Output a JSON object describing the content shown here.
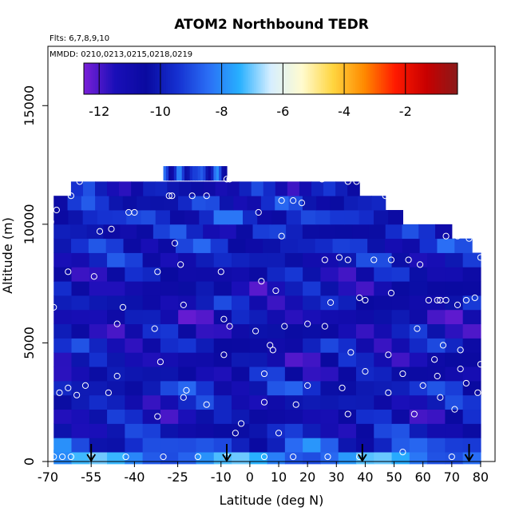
{
  "chart_data": {
    "type": "heatmap",
    "title": "ATOM2 Northbound TEDR",
    "subtitle_flights": "Flts: 6,7,8,9,10",
    "subtitle_dates": "MMDD: 0210,0213,0215,0218,0219",
    "xlabel": "Latitude (deg N)",
    "ylabel": "Altitude (m)",
    "xlim": [
      -70,
      85
    ],
    "ylim": [
      0,
      17500
    ],
    "x_ticks": [
      -70,
      -55,
      -40,
      -25,
      -10,
      0,
      10,
      20,
      30,
      40,
      50,
      60,
      70,
      80
    ],
    "y_ticks": [
      0,
      5000,
      10000,
      15000
    ],
    "colorbar": {
      "range": [
        -12.5,
        -0.3
      ],
      "ticks": [
        -12,
        -10,
        -8,
        -6,
        -4,
        -2
      ],
      "colors": [
        "#7a1fd8",
        "#1a0fb8",
        "#0a0aa0",
        "#1530d0",
        "#2a6ef5",
        "#28b0ff",
        "#d6eeff",
        "#fffbd0",
        "#ffd540",
        "#ff8a00",
        "#ff1a00",
        "#c80000",
        "#8a1a1a"
      ]
    },
    "altitude_bands": [
      {
        "alt": 200,
        "lat_min": -68,
        "lat_max": 80,
        "value": -8.6
      },
      {
        "alt": 700,
        "lat_min": -68,
        "lat_max": 80,
        "value": -9.3
      },
      {
        "alt": 1300,
        "lat_min": -68,
        "lat_max": 80,
        "value": -10.2
      },
      {
        "alt": 1900,
        "lat_min": -68,
        "lat_max": 80,
        "value": -10.6
      },
      {
        "alt": 2500,
        "lat_min": -68,
        "lat_max": 80,
        "value": -10.4
      },
      {
        "alt": 3100,
        "lat_min": -68,
        "lat_max": 80,
        "value": -9.8
      },
      {
        "alt": 3700,
        "lat_min": -68,
        "lat_max": 80,
        "value": -10.5
      },
      {
        "alt": 4300,
        "lat_min": -68,
        "lat_max": 80,
        "value": -10.8
      },
      {
        "alt": 4900,
        "lat_min": -68,
        "lat_max": 80,
        "value": -10.3
      },
      {
        "alt": 5500,
        "lat_min": -68,
        "lat_max": 80,
        "value": -10.7
      },
      {
        "alt": 6100,
        "lat_min": -68,
        "lat_max": 80,
        "value": -10.9
      },
      {
        "alt": 6700,
        "lat_min": -68,
        "lat_max": 80,
        "value": -10.4
      },
      {
        "alt": 7300,
        "lat_min": -68,
        "lat_max": 80,
        "value": -10.8
      },
      {
        "alt": 7900,
        "lat_min": -68,
        "lat_max": 80,
        "value": -10.5
      },
      {
        "alt": 8500,
        "lat_min": -68,
        "lat_max": 80,
        "value": -10.2
      },
      {
        "alt": 9100,
        "lat_min": -68,
        "lat_max": 77,
        "value": -9.9
      },
      {
        "alt": 9700,
        "lat_min": -68,
        "lat_max": 70,
        "value": -10.1
      },
      {
        "alt": 10300,
        "lat_min": -68,
        "lat_max": 53,
        "value": -9.6
      },
      {
        "alt": 10900,
        "lat_min": -68,
        "lat_max": 47,
        "value": -9.9
      },
      {
        "alt": 11500,
        "lat_min": -62,
        "lat_max": 38,
        "value": -10.4
      },
      {
        "alt": 12150,
        "lat_min": -30,
        "lat_max": -8,
        "value": -9.4
      }
    ],
    "observations": [
      [
        -68,
        200
      ],
      [
        -65,
        200
      ],
      [
        -62,
        200
      ],
      [
        -55,
        200
      ],
      [
        -43,
        200
      ],
      [
        -30,
        200
      ],
      [
        -18,
        200
      ],
      [
        -8,
        200
      ],
      [
        5,
        200
      ],
      [
        15,
        200
      ],
      [
        27,
        200
      ],
      [
        38,
        200
      ],
      [
        53,
        400
      ],
      [
        70,
        200
      ],
      [
        -57,
        3200
      ],
      [
        -49,
        2900
      ],
      [
        -46,
        3600
      ],
      [
        -31,
        4200
      ],
      [
        -22,
        3000
      ],
      [
        -15,
        2400
      ],
      [
        -9,
        4500
      ],
      [
        -5,
        1200
      ],
      [
        5,
        3700
      ],
      [
        16,
        2400
      ],
      [
        32,
        3100
      ],
      [
        35,
        4600
      ],
      [
        40,
        3800
      ],
      [
        48,
        2900
      ],
      [
        53,
        3700
      ],
      [
        60,
        3200
      ],
      [
        66,
        2700
      ],
      [
        71,
        2200
      ],
      [
        75,
        3300
      ],
      [
        79,
        2900
      ],
      [
        80,
        4100
      ],
      [
        -66,
        2900
      ],
      [
        -63,
        3100
      ],
      [
        -60,
        2800
      ],
      [
        -32,
        1900
      ],
      [
        -23,
        2700
      ],
      [
        -3,
        1600
      ],
      [
        10,
        1200
      ],
      [
        5,
        2500
      ],
      [
        20,
        3200
      ],
      [
        34,
        2000
      ],
      [
        57,
        2000
      ],
      [
        65,
        3600
      ],
      [
        73,
        3900
      ],
      [
        -68,
        6500
      ],
      [
        -63,
        8000
      ],
      [
        -54,
        7800
      ],
      [
        -46,
        5800
      ],
      [
        -44,
        6500
      ],
      [
        -33,
        5600
      ],
      [
        -32,
        8000
      ],
      [
        -24,
        8300
      ],
      [
        -23,
        6600
      ],
      [
        -10,
        8000
      ],
      [
        -9,
        6000
      ],
      [
        -7,
        5700
      ],
      [
        2,
        5500
      ],
      [
        4,
        7600
      ],
      [
        7,
        4900
      ],
      [
        9,
        7200
      ],
      [
        12,
        5700
      ],
      [
        20,
        5800
      ],
      [
        26,
        5700
      ],
      [
        28,
        6700
      ],
      [
        38,
        6900
      ],
      [
        40,
        6800
      ],
      [
        49,
        7100
      ],
      [
        58,
        5600
      ],
      [
        62,
        6800
      ],
      [
        65,
        6800
      ],
      [
        66,
        6800
      ],
      [
        68,
        6800
      ],
      [
        72,
        6600
      ],
      [
        75,
        6800
      ],
      [
        78,
        6900
      ],
      [
        8,
        4700
      ],
      [
        48,
        4500
      ],
      [
        64,
        4300
      ],
      [
        67,
        4900
      ],
      [
        73,
        4700
      ],
      [
        -62,
        11200
      ],
      [
        -59,
        11800
      ],
      [
        -52,
        9700
      ],
      [
        -48,
        9800
      ],
      [
        -42,
        10500
      ],
      [
        -40,
        10500
      ],
      [
        -26,
        9200
      ],
      [
        -28,
        11200
      ],
      [
        -27,
        11200
      ],
      [
        -20,
        11200
      ],
      [
        -15,
        11200
      ],
      [
        -8,
        11900
      ],
      [
        -7,
        11900
      ],
      [
        3,
        10500
      ],
      [
        11,
        11000
      ],
      [
        15,
        11000
      ],
      [
        18,
        10900
      ],
      [
        25,
        11900
      ],
      [
        34,
        11800
      ],
      [
        37,
        11800
      ],
      [
        42,
        11800
      ],
      [
        47,
        11200
      ],
      [
        51,
        10900
      ],
      [
        56,
        10900
      ],
      [
        63,
        10900
      ],
      [
        11,
        9500
      ],
      [
        26,
        8500
      ],
      [
        31,
        8600
      ],
      [
        34,
        8500
      ],
      [
        43,
        8500
      ],
      [
        49,
        8500
      ],
      [
        55,
        8500
      ],
      [
        59,
        8300
      ],
      [
        68,
        9500
      ],
      [
        72,
        9500
      ],
      [
        76,
        9400
      ],
      [
        80,
        8600
      ],
      [
        -69,
        10100
      ],
      [
        -67,
        10600
      ]
    ],
    "flight_markers_lat": [
      -55,
      -8,
      39,
      76
    ]
  }
}
